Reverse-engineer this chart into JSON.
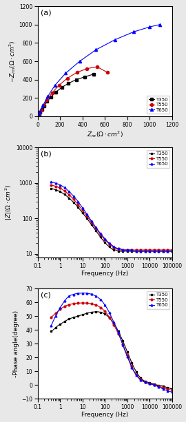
{
  "nyquist": {
    "T350": {
      "re": [
        0,
        5,
        12,
        22,
        38,
        58,
        85,
        120,
        163,
        215,
        275,
        345,
        420,
        500
      ],
      "im": [
        0,
        8,
        22,
        44,
        75,
        115,
        162,
        213,
        265,
        315,
        360,
        400,
        430,
        460
      ],
      "color": "black",
      "marker": "s",
      "label": "T350"
    },
    "T550": {
      "re": [
        0,
        6,
        15,
        30,
        53,
        85,
        130,
        190,
        265,
        350,
        440,
        530,
        620
      ],
      "im": [
        0,
        12,
        32,
        68,
        118,
        182,
        258,
        338,
        415,
        478,
        520,
        540,
        480
      ],
      "color": "#cc0000",
      "marker": "o",
      "label": "T550"
    },
    "T650": {
      "re": [
        0,
        8,
        22,
        48,
        90,
        155,
        250,
        375,
        520,
        690,
        855,
        1000,
        1090
      ],
      "im": [
        0,
        18,
        55,
        120,
        215,
        340,
        470,
        600,
        725,
        835,
        920,
        975,
        1000
      ],
      "color": "blue",
      "marker": "^",
      "label": "T650"
    }
  },
  "bode_freq": [
    0.4,
    0.5,
    0.63,
    0.8,
    1.0,
    1.26,
    1.58,
    2.0,
    2.51,
    3.16,
    3.98,
    5.01,
    6.31,
    7.94,
    10,
    12.6,
    15.8,
    20,
    25.1,
    31.6,
    39.8,
    50.1,
    63.1,
    79.4,
    100,
    126,
    158,
    200,
    251,
    316,
    398,
    501,
    631,
    794,
    1000,
    1260,
    1580,
    2000,
    2510,
    3160,
    3980,
    5010,
    6310,
    7940,
    10000,
    12600,
    15800,
    20000,
    25100,
    31600,
    39800,
    50100,
    63100,
    79400,
    100000
  ],
  "bode_mag": {
    "T350": [
      700,
      675,
      645,
      608,
      566,
      522,
      474,
      423,
      376,
      330,
      286,
      245,
      207,
      174,
      145,
      120,
      100,
      82,
      67,
      55,
      45,
      37,
      30,
      25,
      21,
      18,
      16,
      14,
      13,
      13,
      12,
      12,
      12,
      12,
      12,
      12,
      12,
      12,
      12,
      12,
      12,
      12,
      12,
      12,
      12,
      12,
      12,
      12,
      12,
      12,
      12,
      12,
      12,
      12,
      12
    ],
    "T550": [
      870,
      840,
      805,
      762,
      712,
      656,
      594,
      528,
      465,
      406,
      350,
      297,
      249,
      207,
      172,
      141,
      116,
      95,
      78,
      63,
      52,
      43,
      35,
      30,
      25,
      22,
      19,
      17,
      15,
      14,
      14,
      13,
      13,
      13,
      13,
      13,
      13,
      13,
      13,
      13,
      13,
      13,
      13,
      13,
      13,
      13,
      13,
      13,
      13,
      13,
      13,
      13,
      13,
      13,
      13
    ],
    "T650": [
      1060,
      1025,
      985,
      938,
      880,
      814,
      740,
      658,
      576,
      498,
      428,
      362,
      301,
      247,
      201,
      163,
      131,
      106,
      85,
      69,
      56,
      46,
      38,
      32,
      27,
      23,
      20,
      18,
      16,
      15,
      14,
      14,
      13,
      13,
      13,
      13,
      13,
      12,
      12,
      12,
      12,
      12,
      12,
      12,
      12,
      12,
      12,
      12,
      12,
      12,
      12,
      12,
      12,
      12,
      12
    ]
  },
  "bode_phase": {
    "T350": [
      39,
      40,
      41.5,
      43,
      44,
      45,
      46,
      47,
      48,
      48.5,
      49,
      49.5,
      50,
      50.5,
      51,
      51.5,
      52,
      52.5,
      52.8,
      53,
      53.1,
      53.1,
      52.8,
      52.3,
      51.5,
      50.3,
      48.8,
      46.8,
      44.5,
      42,
      39,
      35.5,
      32,
      28,
      24,
      20,
      16,
      12.5,
      9.5,
      7,
      5,
      3.5,
      2.5,
      2,
      1.5,
      1,
      0.5,
      0,
      -0.3,
      -0.6,
      -1,
      -1.5,
      -2,
      -2.5,
      -3
    ],
    "T550": [
      49,
      50.5,
      52,
      53.5,
      55,
      56,
      57,
      57.8,
      58.3,
      58.7,
      59,
      59.2,
      59.4,
      59.5,
      59.5,
      59.5,
      59.4,
      59.2,
      58.9,
      58.5,
      58,
      57.3,
      56.3,
      55,
      53.5,
      51.5,
      49,
      46.5,
      43.5,
      40.5,
      37,
      33.5,
      29.5,
      25.5,
      21.5,
      17.5,
      13.5,
      10,
      7.5,
      5.5,
      4,
      2.8,
      2,
      1.5,
      1,
      0.5,
      0,
      -0.5,
      -1,
      -1.5,
      -2,
      -2.5,
      -3,
      -3.5,
      -4
    ],
    "T650": [
      43,
      46.5,
      50,
      53,
      56,
      58.5,
      61,
      63,
      64.5,
      65.3,
      65.8,
      66.2,
      66.5,
      66.6,
      66.7,
      66.7,
      66.6,
      66.3,
      65.9,
      65.3,
      64.5,
      63.5,
      62,
      60.3,
      58,
      55.5,
      52.5,
      49,
      45.5,
      42,
      38,
      33.5,
      29,
      24.5,
      20.5,
      16.5,
      12.5,
      9.5,
      7,
      5,
      3.5,
      2.5,
      1.8,
      1.2,
      0.8,
      0.3,
      -0.2,
      -0.8,
      -1.5,
      -2.2,
      -3,
      -3.7,
      -4.3,
      -4.8,
      -5.2
    ]
  },
  "colors": {
    "T350": "black",
    "T550": "#cc0000",
    "T650": "blue"
  },
  "markers": {
    "T350": "s",
    "T550": "o",
    "T650": "^"
  },
  "panel_labels": [
    "(a)",
    "(b)",
    "(c)"
  ],
  "fig_bg": "#e8e8e8"
}
